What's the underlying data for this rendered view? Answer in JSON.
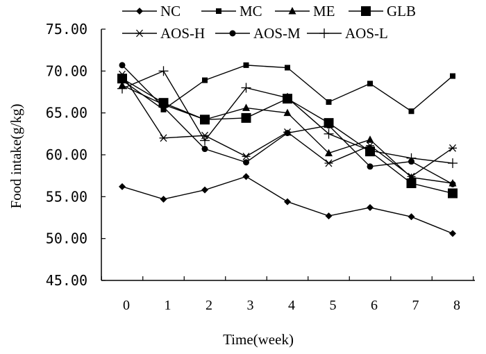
{
  "chart_data": {
    "type": "line",
    "title": "",
    "xlabel": "Time(week)",
    "ylabel": "Food intake(g/kg)",
    "ylim": [
      45,
      75
    ],
    "yticks": [
      "45.00",
      "50.00",
      "55.00",
      "60.00",
      "65.00",
      "70.00",
      "75.00"
    ],
    "xticks": [
      "0",
      "1",
      "2",
      "3",
      "4",
      "5",
      "6",
      "7",
      "8"
    ],
    "grid": false,
    "legend_position": "top",
    "series": [
      {
        "name": "NC",
        "marker": "diamond",
        "x": [
          0,
          1,
          2,
          3,
          4,
          5,
          6,
          7,
          8
        ],
        "values": [
          56.2,
          54.7,
          55.8,
          57.4,
          54.4,
          52.7,
          53.7,
          52.6,
          50.6
        ]
      },
      {
        "name": "MC",
        "marker": "small-square",
        "x": [
          0,
          1,
          2,
          3,
          4,
          5,
          6,
          7,
          8
        ],
        "values": [
          68.9,
          65.4,
          68.9,
          70.7,
          70.4,
          66.3,
          68.5,
          65.2,
          69.4
        ]
      },
      {
        "name": "ME",
        "marker": "triangle",
        "x": [
          0,
          1,
          2,
          3,
          4,
          5,
          6,
          7,
          8
        ],
        "values": [
          68.3,
          66.0,
          64.2,
          65.6,
          65.0,
          60.2,
          61.8,
          57.3,
          56.6
        ]
      },
      {
        "name": "GLB",
        "marker": "large-square",
        "x": [
          0,
          1,
          2,
          3,
          4,
          5,
          6,
          7,
          8
        ],
        "values": [
          69.1,
          66.2,
          64.2,
          64.4,
          66.7,
          63.8,
          60.4,
          56.6,
          55.4
        ]
      },
      {
        "name": "AOS-H",
        "marker": "asterisk",
        "x": [
          0,
          1,
          2,
          3,
          4,
          5,
          6,
          7,
          8
        ],
        "values": [
          69.6,
          62.0,
          62.3,
          59.8,
          62.7,
          59.0,
          61.1,
          57.4,
          60.8
        ]
      },
      {
        "name": "AOS-M",
        "marker": "circle",
        "x": [
          0,
          1,
          2,
          3,
          4,
          5,
          6,
          7,
          8
        ],
        "values": [
          70.7,
          65.7,
          60.7,
          59.1,
          62.6,
          63.5,
          58.6,
          59.2,
          56.5
        ]
      },
      {
        "name": "AOS-L",
        "marker": "plus",
        "x": [
          0,
          1,
          2,
          3,
          4,
          5,
          6,
          7,
          8
        ],
        "values": [
          67.9,
          70.0,
          61.7,
          68.0,
          66.8,
          62.5,
          60.5,
          59.6,
          59.0
        ]
      }
    ]
  }
}
